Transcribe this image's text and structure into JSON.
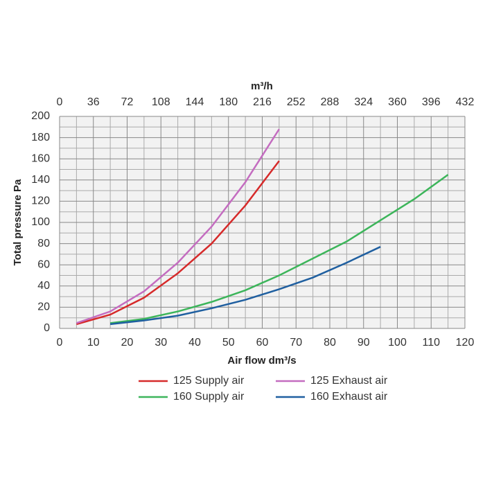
{
  "chart_data": {
    "type": "line",
    "x_label": "Air flow dm³/s",
    "y_label": "Total pressure Pa",
    "x2_label": "m³/h",
    "xlim": [
      0,
      120
    ],
    "xticks": [
      0,
      10,
      20,
      30,
      40,
      50,
      60,
      70,
      80,
      90,
      100,
      110,
      120
    ],
    "x2lim": [
      0,
      432
    ],
    "x2ticks": [
      0,
      36,
      72,
      108,
      144,
      180,
      216,
      252,
      288,
      324,
      360,
      396,
      432
    ],
    "ylim": [
      0,
      200
    ],
    "yticks": [
      0,
      20,
      40,
      60,
      80,
      100,
      120,
      140,
      160,
      180,
      200
    ],
    "x_minor_grid": [
      5,
      15,
      25,
      35,
      45,
      55,
      65,
      75,
      85,
      95,
      105,
      115
    ],
    "y_minor_grid": [
      10,
      30,
      50,
      70,
      90,
      110,
      130,
      150,
      170,
      190
    ],
    "grid": true,
    "series": [
      {
        "name": "125 Supply air",
        "color": "#d62a2a",
        "x": [
          5,
          15,
          25,
          35,
          45,
          55,
          65
        ],
        "values": [
          4,
          13,
          29,
          52,
          80,
          116,
          158
        ]
      },
      {
        "name": "125 Exhaust air",
        "color": "#c46cc0",
        "x": [
          5,
          15,
          25,
          35,
          45,
          55,
          65
        ],
        "values": [
          5,
          16,
          35,
          62,
          96,
          138,
          188
        ]
      },
      {
        "name": "160 Supply air",
        "color": "#3cb55a",
        "x": [
          15,
          25,
          35,
          45,
          55,
          65,
          75,
          85,
          95,
          105,
          115
        ],
        "values": [
          5,
          9,
          16,
          25,
          36,
          50,
          66,
          82,
          102,
          122,
          145
        ]
      },
      {
        "name": "160 Exhaust air",
        "color": "#1f5fa0",
        "x": [
          15,
          25,
          35,
          45,
          55,
          65,
          75,
          85,
          95
        ],
        "values": [
          4,
          7.5,
          12,
          19,
          27,
          37,
          48,
          62,
          77
        ]
      }
    ]
  }
}
